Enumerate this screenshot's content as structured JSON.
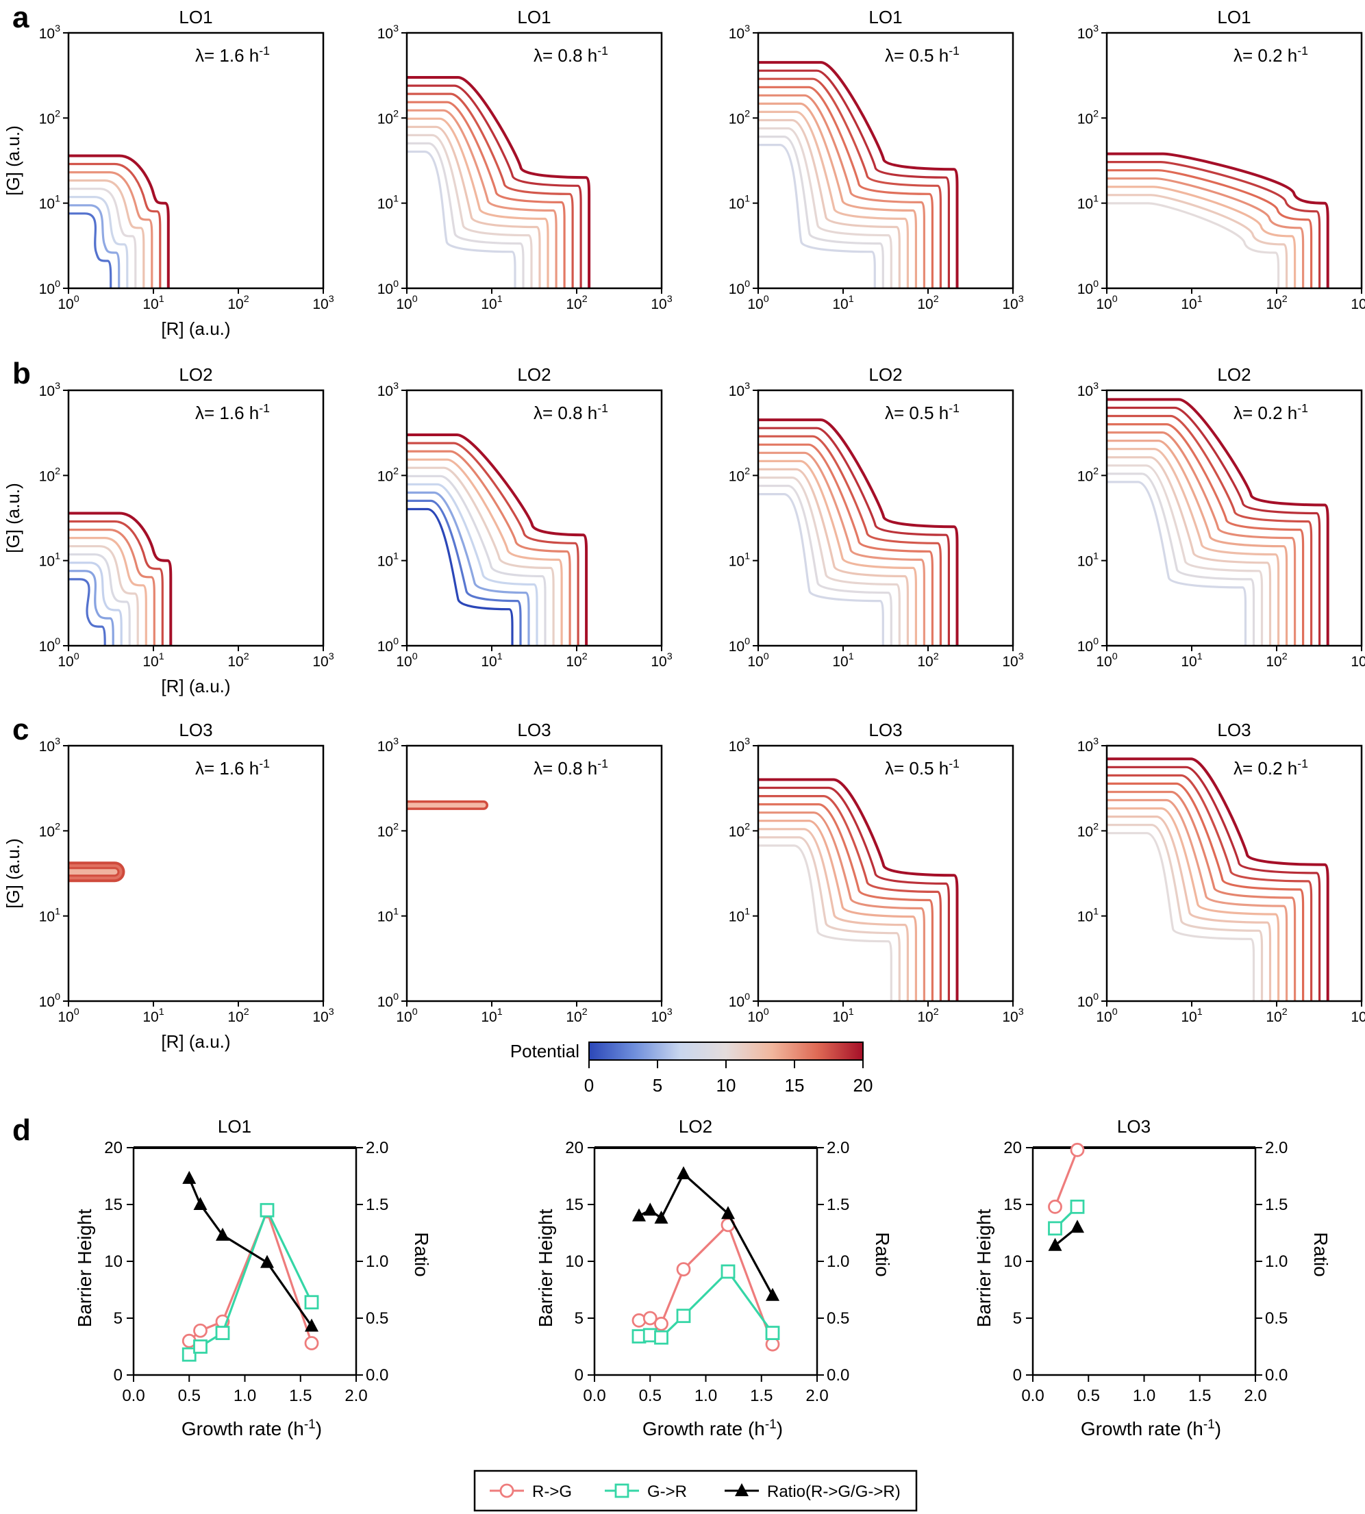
{
  "panel_labels": [
    "a",
    "b",
    "c",
    "d"
  ],
  "colorbar": {
    "label": "Potential",
    "range": [
      0,
      20
    ],
    "ticks": [
      "0",
      "5",
      "10",
      "15",
      "20"
    ],
    "colors": [
      "#2b47b8",
      "#6f8fdc",
      "#c9d6ee",
      "#e4dcdc",
      "#f1b79e",
      "#df6a55",
      "#a50f28"
    ]
  },
  "chart_data": [
    {
      "type": "contour",
      "panel": "a",
      "xlabel": "[R] (a.u.)",
      "ylabel": "[G] (a.u.)",
      "xscale": "log",
      "yscale": "log",
      "xlim": [
        1,
        1000
      ],
      "ylim": [
        1,
        1000
      ],
      "tick_labels": [
        "10",
        "10",
        "10",
        "10"
      ],
      "tick_exponents": [
        "0",
        "1",
        "2",
        "3"
      ],
      "plots": [
        {
          "title": "LO1",
          "lambda": "λ= 1.6 h",
          "lambda_sup": "-1",
          "growth_rate": 1.6,
          "g_top": 36,
          "r_right": 15,
          "step_g": 10,
          "step_r": 10,
          "knee": 0.6,
          "n_levels": 8,
          "min_level": 1
        },
        {
          "title": "LO1",
          "lambda": "λ= 0.8 h",
          "lambda_sup": "-1",
          "growth_rate": 0.8,
          "g_top": 300,
          "r_right": 140,
          "step_g": 20,
          "step_r": 22,
          "knee": 0.45,
          "n_levels": 10,
          "min_level": 4
        },
        {
          "title": "LO1",
          "lambda": "λ= 0.5 h",
          "lambda_sup": "-1",
          "growth_rate": 0.5,
          "g_top": 450,
          "r_right": 220,
          "step_g": 25,
          "step_r": 30,
          "knee": 0.5,
          "n_levels": 11,
          "min_level": 4
        },
        {
          "title": "LO1",
          "lambda": "λ= 0.2 h",
          "lambda_sup": "-1",
          "growth_rate": 0.2,
          "g_top": 38,
          "r_right": 400,
          "step_g": 10,
          "step_r": 160,
          "knee": 0.3,
          "n_levels": 7,
          "min_level": 5
        }
      ]
    },
    {
      "type": "contour",
      "panel": "b",
      "xlabel": "[R] (a.u.)",
      "ylabel": "[G] (a.u.)",
      "xscale": "log",
      "yscale": "log",
      "xlim": [
        1,
        1000
      ],
      "ylim": [
        1,
        1000
      ],
      "tick_labels": [
        "10",
        "10",
        "10",
        "10"
      ],
      "tick_exponents": [
        "0",
        "1",
        "2",
        "3"
      ],
      "plots": [
        {
          "title": "LO2",
          "lambda": "λ= 1.6 h",
          "lambda_sup": "-1",
          "growth_rate": 1.6,
          "g_top": 36,
          "r_right": 16,
          "step_g": 10,
          "step_r": 10,
          "knee": 0.6,
          "n_levels": 9,
          "min_level": 1
        },
        {
          "title": "LO2",
          "lambda": "λ= 0.8 h",
          "lambda_sup": "-1",
          "growth_rate": 0.8,
          "g_top": 300,
          "r_right": 130,
          "step_g": 20,
          "step_r": 30,
          "knee": 0.4,
          "n_levels": 10,
          "min_level": 0
        },
        {
          "title": "LO2",
          "lambda": "λ= 0.5 h",
          "lambda_sup": "-1",
          "growth_rate": 0.5,
          "g_top": 450,
          "r_right": 220,
          "step_g": 25,
          "step_r": 30,
          "knee": 0.5,
          "n_levels": 10,
          "min_level": 4
        },
        {
          "title": "LO2",
          "lambda": "λ= 0.2 h",
          "lambda_sup": "-1",
          "growth_rate": 0.2,
          "g_top": 780,
          "r_right": 400,
          "step_g": 45,
          "step_r": 50,
          "knee": 0.5,
          "n_levels": 11,
          "min_level": 4
        }
      ]
    },
    {
      "type": "contour",
      "panel": "c",
      "xlabel": "[R] (a.u.)",
      "ylabel": "[G] (a.u.)",
      "xscale": "log",
      "yscale": "log",
      "xlim": [
        1,
        1000
      ],
      "ylim": [
        1,
        1000
      ],
      "tick_labels": [
        "10",
        "10",
        "10",
        "10"
      ],
      "tick_exponents": [
        "0",
        "1",
        "2",
        "3"
      ],
      "plots": [
        {
          "title": "LO3",
          "lambda": "λ= 1.6 h",
          "lambda_sup": "-1",
          "growth_rate": 1.6,
          "blob": {
            "r0": 1,
            "r1": 3.5,
            "g": 33,
            "widths": [
              30,
              22,
              14,
              8
            ],
            "colors": [
              "#cf4a3c",
              "#e07060",
              "#d24d3e",
              "#f0b3a0"
            ]
          }
        },
        {
          "title": "LO3",
          "lambda": "λ= 0.8 h",
          "lambda_sup": "-1",
          "growth_rate": 0.8,
          "blob": {
            "r0": 1,
            "r1": 8,
            "g": 200,
            "widths": [
              14,
              7
            ],
            "colors": [
              "#d24d3e",
              "#f4b9a6"
            ]
          }
        },
        {
          "title": "LO3",
          "lambda": "λ= 0.5 h",
          "lambda_sup": "-1",
          "growth_rate": 0.5,
          "g_top": 400,
          "r_right": 220,
          "step_g": 30,
          "step_r": 30,
          "knee": 0.6,
          "n_levels": 9,
          "min_level": 5
        },
        {
          "title": "LO3",
          "lambda": "λ= 0.2 h",
          "lambda_sup": "-1",
          "growth_rate": 0.2,
          "g_top": 700,
          "r_right": 400,
          "step_g": 40,
          "step_r": 45,
          "knee": 0.6,
          "n_levels": 10,
          "min_level": 5
        }
      ]
    },
    {
      "type": "line",
      "panel": "d",
      "xlabel": "Growth rate (h",
      "xlabel_sup": "-1",
      "xlabel_end": ")",
      "ylabel_left": "Barrier Height",
      "ylabel_right": "Ratio",
      "xlim": [
        0,
        2
      ],
      "ylim_left": [
        0,
        20
      ],
      "ylim_right": [
        0,
        2
      ],
      "xticks": [
        "0.0",
        "0.5",
        "1.0",
        "1.5",
        "2.0"
      ],
      "yticks_left": [
        "0",
        "5",
        "10",
        "15",
        "20"
      ],
      "yticks_right": [
        "0.0",
        "0.5",
        "1.0",
        "1.5",
        "2.0"
      ],
      "plots": [
        {
          "title": "LO1",
          "series": [
            {
              "name": "R->G",
              "x": [
                0.5,
                0.6,
                0.8,
                1.2,
                1.6
              ],
              "y": [
                3.0,
                3.9,
                4.7,
                14.4,
                2.8
              ]
            },
            {
              "name": "G->R",
              "x": [
                0.5,
                0.6,
                0.8,
                1.2,
                1.6
              ],
              "y": [
                1.8,
                2.5,
                3.7,
                14.5,
                6.4
              ]
            },
            {
              "name": "Ratio(R->G/G->R)",
              "x": [
                0.5,
                0.6,
                0.8,
                1.2,
                1.6
              ],
              "y": [
                1.73,
                1.5,
                1.23,
                0.99,
                0.43
              ]
            }
          ]
        },
        {
          "title": "LO2",
          "series": [
            {
              "name": "R->G",
              "x": [
                0.4,
                0.5,
                0.6,
                0.8,
                1.2,
                1.6
              ],
              "y": [
                4.8,
                5.0,
                4.5,
                9.3,
                13.2,
                2.7
              ]
            },
            {
              "name": "G->R",
              "x": [
                0.4,
                0.5,
                0.6,
                0.8,
                1.2,
                1.6
              ],
              "y": [
                3.4,
                3.5,
                3.3,
                5.2,
                9.1,
                3.7
              ]
            },
            {
              "name": "Ratio(R->G/G->R)",
              "x": [
                0.4,
                0.5,
                0.6,
                0.8,
                1.2,
                1.6
              ],
              "y": [
                1.4,
                1.45,
                1.38,
                1.77,
                1.42,
                0.7
              ]
            }
          ]
        },
        {
          "title": "LO3",
          "series": [
            {
              "name": "R->G",
              "x": [
                0.2,
                0.4
              ],
              "y": [
                14.8,
                19.8
              ]
            },
            {
              "name": "G->R",
              "x": [
                0.2,
                0.4
              ],
              "y": [
                12.9,
                14.8
              ]
            },
            {
              "name": "Ratio(R->G/G->R)",
              "x": [
                0.2,
                0.4
              ],
              "y": [
                1.14,
                1.3
              ]
            }
          ]
        }
      ],
      "legend": {
        "placement": "bottom-center",
        "entries": [
          "R->G",
          "G->R",
          "Ratio(R->G/G->R)"
        ]
      },
      "colors": {
        "R->G": "#ee7c7c",
        "G->R": "#35d6a6",
        "Ratio(R->G/G->R)": "#000000"
      }
    }
  ]
}
